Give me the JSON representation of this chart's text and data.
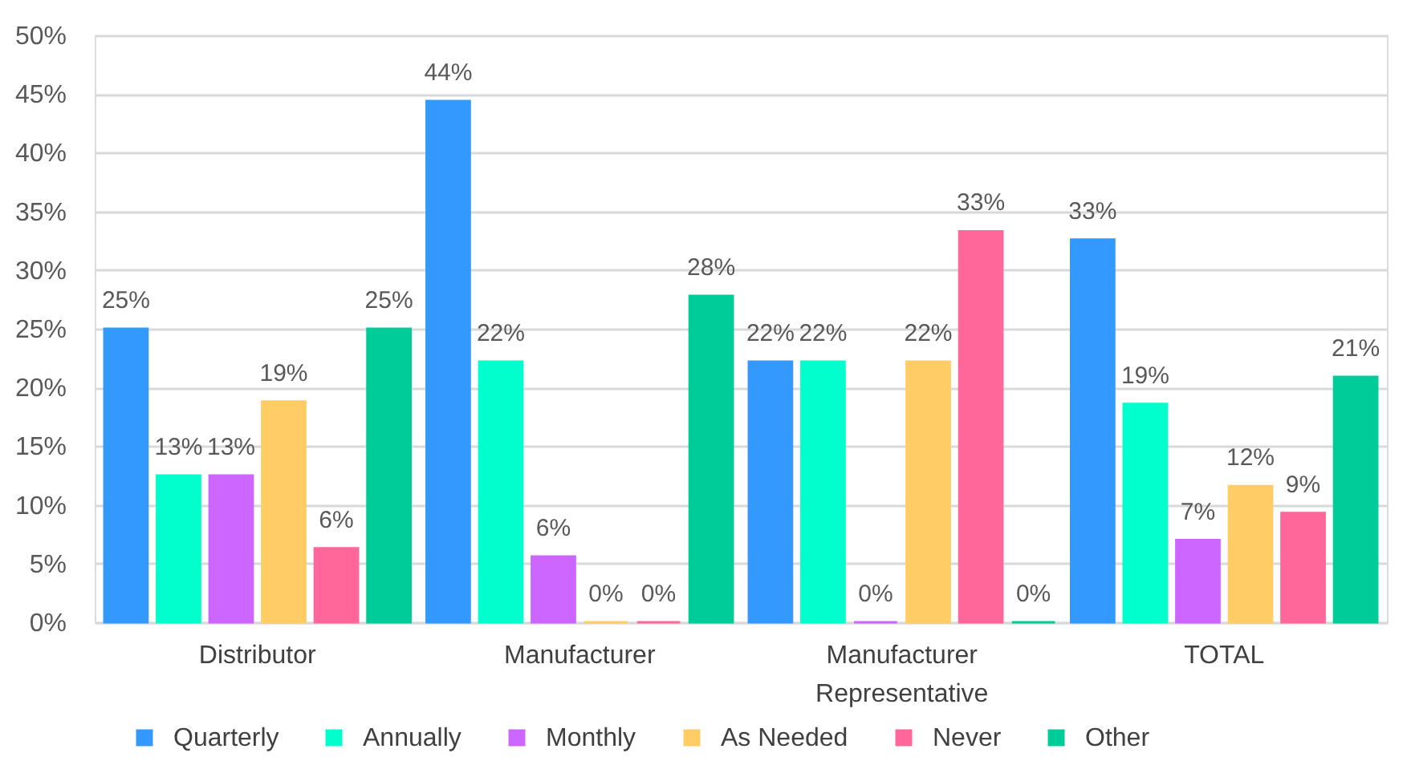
{
  "chart_data": {
    "type": "bar",
    "categories": [
      "Distributor",
      "Manufacturer",
      "Manufacturer Representative",
      "TOTAL"
    ],
    "series": [
      {
        "name": "Quarterly",
        "color": "#3399ff",
        "values": [
          25,
          44.4,
          22.2,
          32.6
        ],
        "value_labels": [
          "25%",
          "44%",
          "22%",
          "33%"
        ]
      },
      {
        "name": "Annually",
        "color": "#00ffcc",
        "values": [
          12.5,
          22.2,
          22.2,
          18.6
        ],
        "value_labels": [
          "13%",
          "22%",
          "22%",
          "19%"
        ]
      },
      {
        "name": "Monthly",
        "color": "#cc66ff",
        "values": [
          12.5,
          5.6,
          0,
          7.0
        ],
        "value_labels": [
          "13%",
          "6%",
          "0%",
          "7%"
        ]
      },
      {
        "name": "As Needed",
        "color": "#ffcc66",
        "values": [
          18.8,
          0,
          22.2,
          11.6
        ],
        "value_labels": [
          "19%",
          "0%",
          "22%",
          "12%"
        ]
      },
      {
        "name": "Never",
        "color": "#ff6699",
        "values": [
          6.3,
          0,
          33.3,
          9.3
        ],
        "value_labels": [
          "6%",
          "0%",
          "33%",
          "9%"
        ]
      },
      {
        "name": "Other",
        "color": "#00cc99",
        "values": [
          25,
          27.8,
          0,
          20.9
        ],
        "value_labels": [
          "25%",
          "28%",
          "0%",
          "21%"
        ]
      }
    ],
    "ylim": [
      0,
      50
    ],
    "yticks": [
      {
        "value": 0,
        "label": "0%"
      },
      {
        "value": 5,
        "label": "5%"
      },
      {
        "value": 10,
        "label": "10%"
      },
      {
        "value": 15,
        "label": "15%"
      },
      {
        "value": 20,
        "label": "20%"
      },
      {
        "value": 25,
        "label": "25%"
      },
      {
        "value": 30,
        "label": "30%"
      },
      {
        "value": 35,
        "label": "35%"
      },
      {
        "value": 40,
        "label": "40%"
      },
      {
        "value": 45,
        "label": "45%"
      },
      {
        "value": 50,
        "label": "50%"
      }
    ],
    "grid": "y",
    "legend": "bottom"
  }
}
